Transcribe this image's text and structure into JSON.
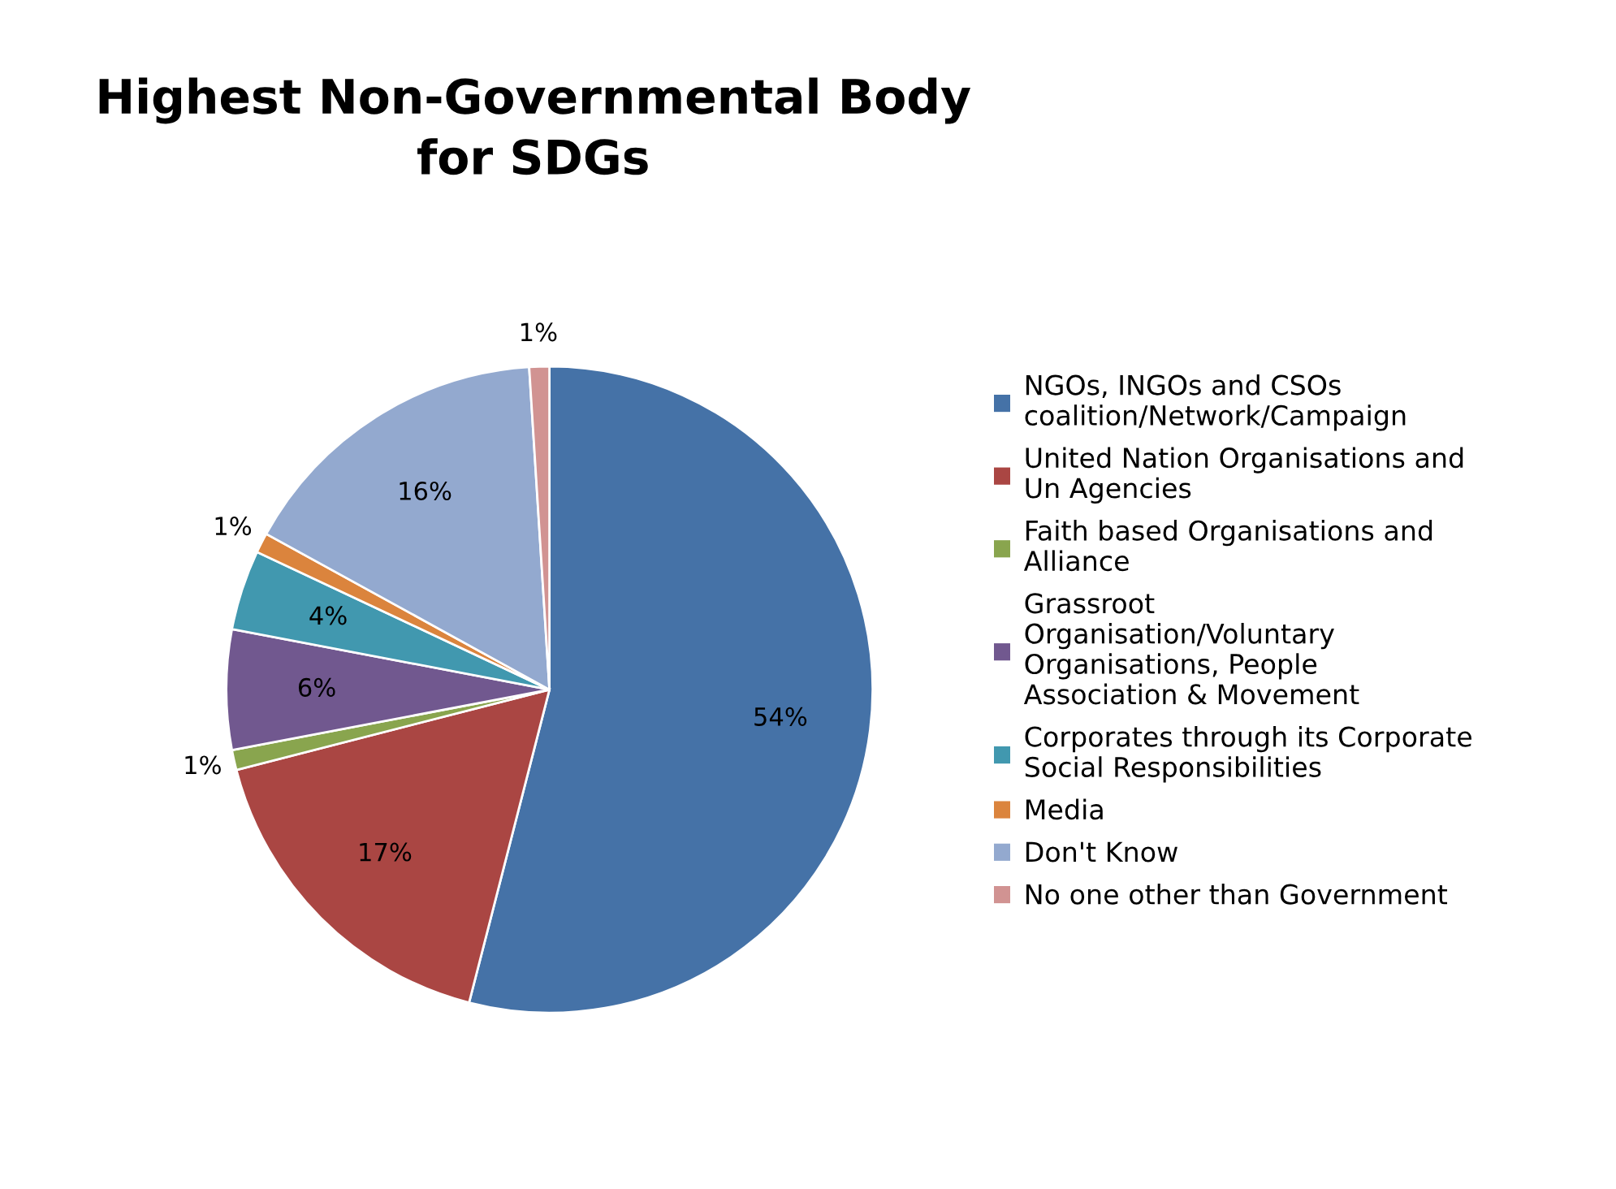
{
  "chart_data": {
    "type": "pie",
    "title": "Highest Non-Governmental Body\nfor SDGs",
    "categories": [
      "NGOs, INGOs and CSOs\ncoalition/Network/Campaign",
      "United Nation Organisations and\nUn Agencies",
      "Faith based Organisations and\nAlliance",
      "Grassroot\nOrganisation/Voluntary\nOrganisations, People\nAssociation & Movement",
      "Corporates through its Corporate\nSocial Responsibilities",
      "Media",
      "Don't Know",
      "No one other than Government"
    ],
    "values": [
      54,
      17,
      1,
      6,
      4,
      1,
      16,
      1
    ],
    "value_labels": [
      "54%",
      "17%",
      "1%",
      "6%",
      "4%",
      "1%",
      "16%",
      "1%"
    ],
    "colors": [
      "#4572a7",
      "#aa4643",
      "#89a54e",
      "#71588f",
      "#4198af",
      "#db843d",
      "#93a9cf",
      "#d19392"
    ],
    "legend": "right"
  }
}
